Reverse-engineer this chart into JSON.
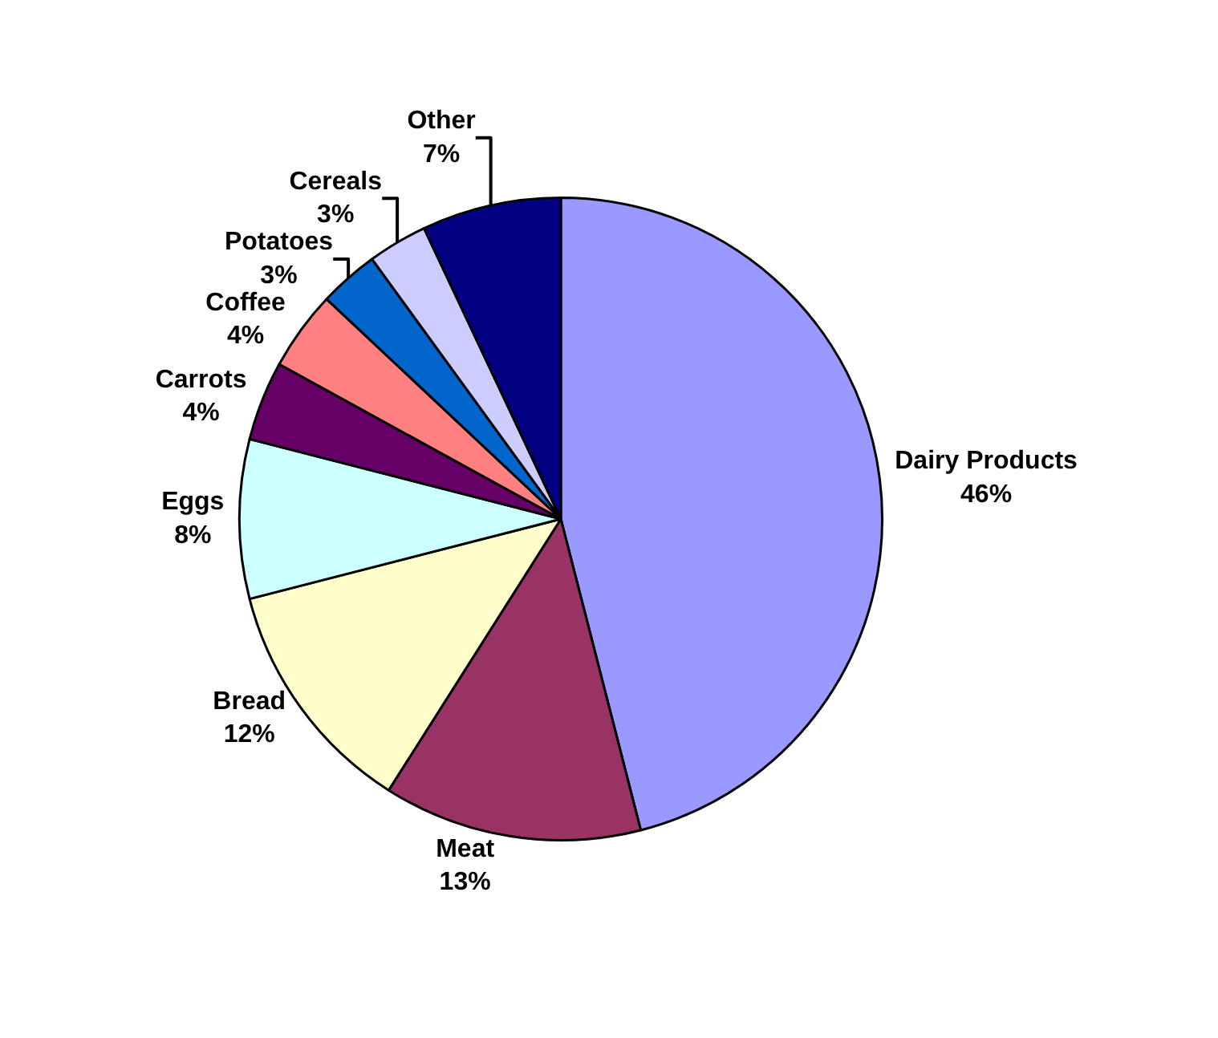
{
  "chart_data": {
    "type": "pie",
    "categories": [
      "Dairy Products",
      "Meat",
      "Bread",
      "Eggs",
      "Carrots",
      "Coffee",
      "Potatoes",
      "Cereals",
      "Other"
    ],
    "values": [
      46,
      13,
      12,
      8,
      4,
      4,
      3,
      3,
      7
    ],
    "value_labels": [
      "46%",
      "13%",
      "12%",
      "8%",
      "4%",
      "4%",
      "3%",
      "3%",
      "7%"
    ],
    "colors": [
      "#9999ff",
      "#993366",
      "#ffffcc",
      "#ccffff",
      "#660066",
      "#ff8080",
      "#0066cc",
      "#ccccff",
      "#000080"
    ],
    "legend": false
  }
}
